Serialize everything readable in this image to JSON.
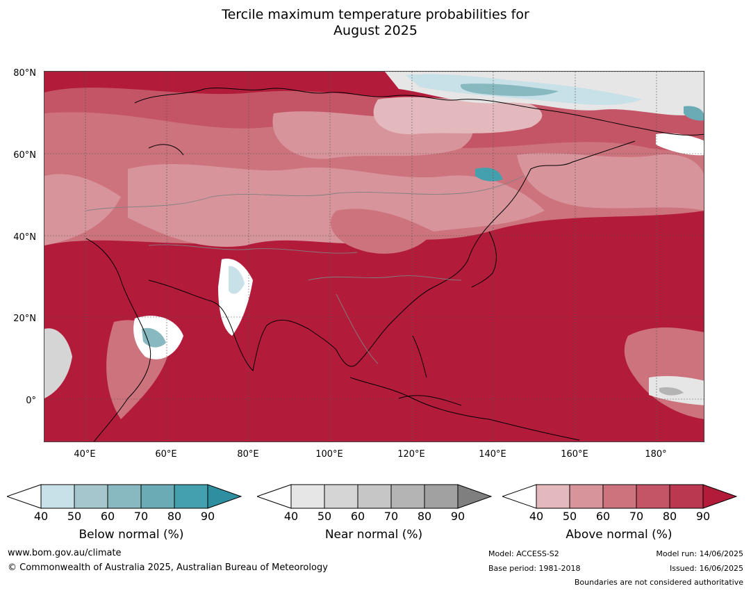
{
  "title_line1": "Tercile maximum temperature probabilities for",
  "title_line2": "August 2025",
  "map": {
    "lat_labels": [
      "80°N",
      "60°N",
      "40°N",
      "20°N",
      "0°"
    ],
    "lon_labels": [
      "40°E",
      "60°E",
      "80°E",
      "100°E",
      "120°E",
      "140°E",
      "160°E",
      "180°"
    ],
    "lat_values": [
      80,
      60,
      40,
      20,
      0
    ],
    "lon_values": [
      40,
      60,
      80,
      100,
      120,
      140,
      160,
      180
    ],
    "extent": {
      "lon_min": 30,
      "lon_max": 192,
      "lat_min": -10,
      "lat_max": 80
    },
    "dominant_category": "Above normal"
  },
  "colorbars": [
    {
      "title": "Below normal (%)",
      "ticks": [
        "40",
        "50",
        "60",
        "70",
        "80",
        "90"
      ],
      "colors": [
        "#c8e0e7",
        "#a5c6cc",
        "#88b8c0",
        "#6aabb6",
        "#45a0ae",
        "#2e8fa1"
      ]
    },
    {
      "title": "Near normal (%)",
      "ticks": [
        "40",
        "50",
        "60",
        "70",
        "80",
        "90"
      ],
      "colors": [
        "#e6e6e6",
        "#d5d5d5",
        "#c6c6c6",
        "#b4b4b4",
        "#a1a1a1",
        "#7f7f7f"
      ]
    },
    {
      "title": "Above normal (%)",
      "ticks": [
        "40",
        "50",
        "60",
        "70",
        "80",
        "90"
      ],
      "colors": [
        "#e3b9bd",
        "#d8949b",
        "#cd737d",
        "#c35566",
        "#ba3850",
        "#b31b3a"
      ]
    }
  ],
  "footer": {
    "website": "www.bom.gov.au/climate",
    "copyright": "© Commonwealth of Australia 2025, Australian Bureau of Meteorology",
    "model": "Model: ACCESS-S2",
    "base_period": "Base period: 1981-2018",
    "model_run": "Model run: 14/06/2025",
    "issued": "Issued: 16/06/2025",
    "disclaimer": "Boundaries are not considered authoritative"
  }
}
